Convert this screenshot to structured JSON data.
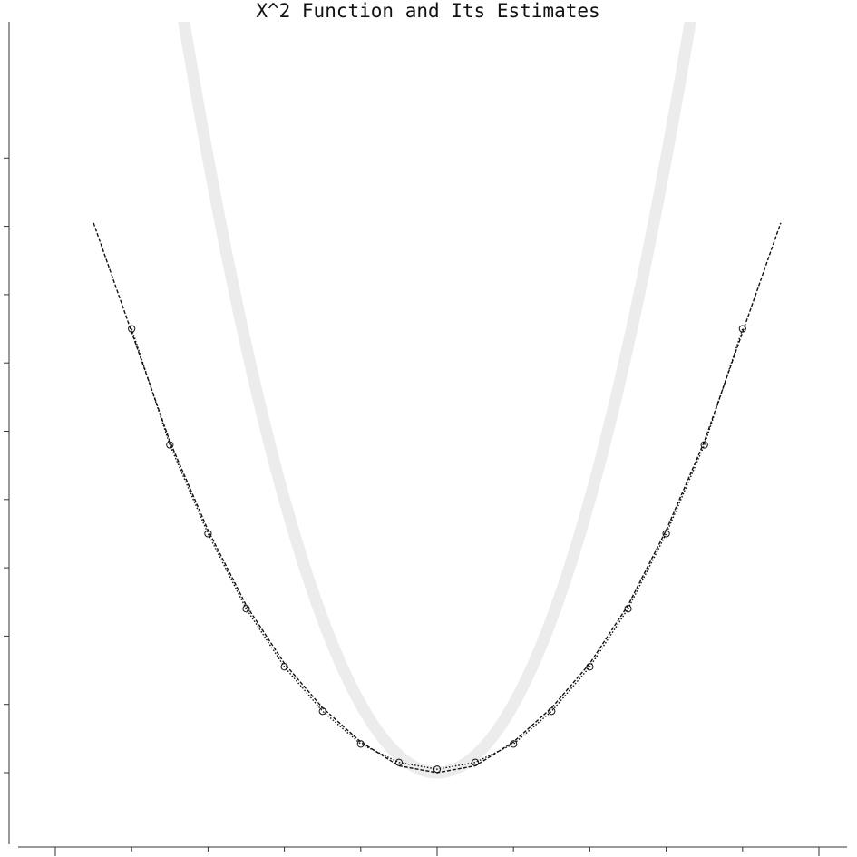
{
  "chart_data": {
    "type": "line",
    "title": "X^2 Function and Its Estimates",
    "xlabel": "",
    "ylabel": "",
    "xlim": [
      -5.24,
      5.24
    ],
    "ylim": [
      -0.9,
      9.9
    ],
    "x_ticks": [
      -5,
      -4,
      -3,
      -2,
      -1,
      0,
      1,
      2,
      3,
      4,
      5
    ],
    "y_ticks": [
      0,
      1,
      2,
      3,
      4,
      5,
      6,
      7,
      8,
      9
    ],
    "tick_labels_shown": false,
    "grid": false,
    "legend": "none",
    "series": [
      {
        "style": "thick light gray line",
        "color": "#ececec",
        "function": "x^2",
        "x_range": [
          -5.3,
          5.3
        ]
      },
      {
        "style": "dotted line with open circle markers",
        "color": "#111111",
        "x": [
          -4,
          -3.5,
          -3,
          -2.5,
          -2,
          -1.5,
          -1,
          -0.5,
          0,
          0.5,
          1,
          1.5,
          2,
          2.5,
          3,
          3.5,
          4
        ],
        "y": [
          6.5,
          4.8,
          3.5,
          2.4,
          1.55,
          0.9,
          0.42,
          0.15,
          0.05,
          0.15,
          0.42,
          0.9,
          1.55,
          2.4,
          3.5,
          4.8,
          6.5
        ]
      },
      {
        "style": "dashed line",
        "color": "#111111",
        "x": [
          -4.5,
          -4,
          -3.5,
          -3,
          -2.5,
          -2,
          -1.5,
          -1,
          -0.5,
          0,
          0.5,
          1,
          1.5,
          2,
          2.5,
          3,
          3.5,
          4,
          4.5
        ],
        "y": [
          8.05,
          6.45,
          4.85,
          3.55,
          2.45,
          1.6,
          0.95,
          0.45,
          0.1,
          0.0,
          0.1,
          0.45,
          0.95,
          1.6,
          2.45,
          3.55,
          4.85,
          6.45,
          8.05
        ]
      }
    ]
  }
}
